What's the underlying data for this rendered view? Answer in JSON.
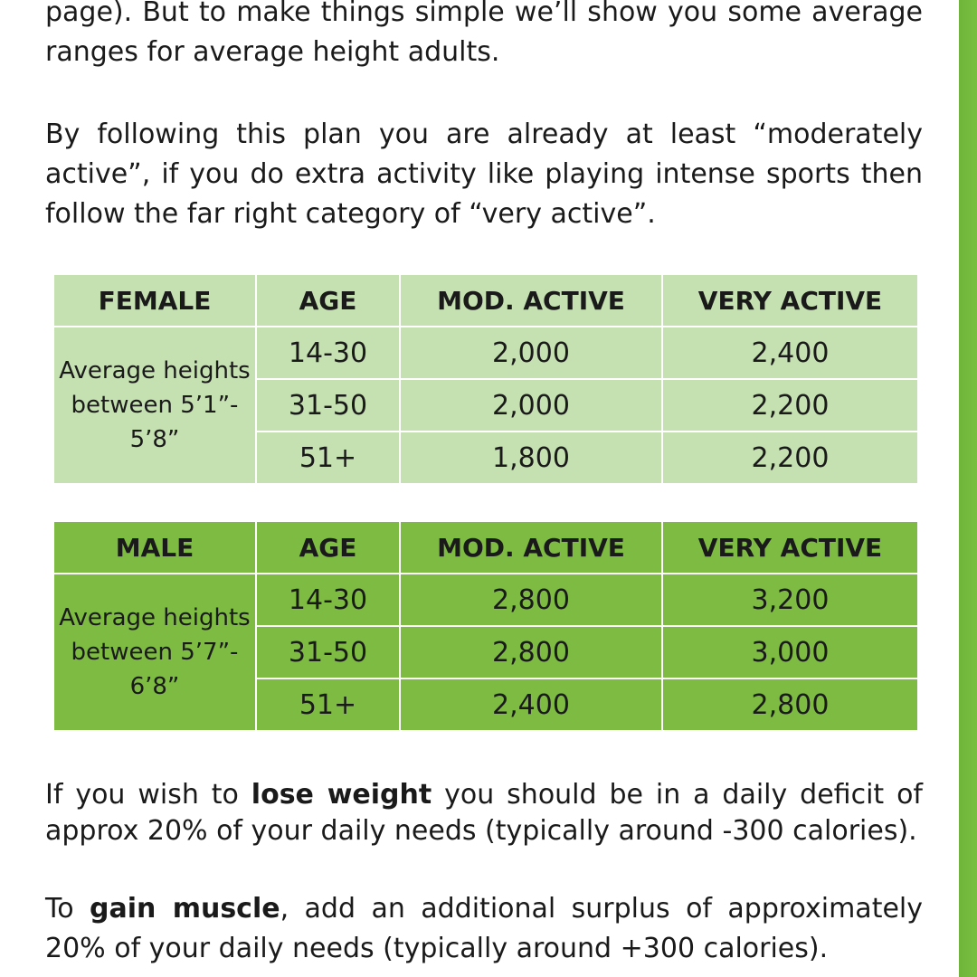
{
  "intro": {
    "line_top": "page). But to make things simple we’ll show you some average ranges for average height adults.",
    "activity_note": "By following this plan you are already at least “moderately active”, if you do extra activity like playing intense sports then follow the far right category of “very active”."
  },
  "female_table": {
    "headers": [
      "FEMALE",
      "AGE",
      "MOD. ACTIVE",
      "VERY ACTIVE"
    ],
    "description": "Average heights between 5’1”- 5’8”",
    "rows": [
      {
        "age": "14-30",
        "mod": "2,000",
        "very": "2,400"
      },
      {
        "age": "31-50",
        "mod": "2,000",
        "very": "2,200"
      },
      {
        "age": "51+",
        "mod": "1,800",
        "very": "2,200"
      }
    ]
  },
  "male_table": {
    "headers": [
      "MALE",
      "AGE",
      "MOD. ACTIVE",
      "VERY ACTIVE"
    ],
    "description": "Average heights between 5’7”- 6’8”",
    "rows": [
      {
        "age": "14-30",
        "mod": "2,800",
        "very": "3,200"
      },
      {
        "age": "31-50",
        "mod": "2,800",
        "very": "3,000"
      },
      {
        "age": "51+",
        "mod": "2,400",
        "very": "2,800"
      }
    ]
  },
  "lose_weight": {
    "prefix": "If you wish to ",
    "bold": "lose weight",
    "suffix": " you should be in a daily deficit of approx 20% of your daily needs (typically around -300 calories)."
  },
  "gain_muscle": {
    "prefix": "To ",
    "bold": "gain muscle",
    "suffix": ", add an additional surplus of approximately 20% of your daily needs (typically around +300 calories)."
  },
  "colors": {
    "female_table_bg": "#c5e0b1",
    "male_table_bg": "#7dbb42",
    "side_bar": "#79bf3f"
  }
}
